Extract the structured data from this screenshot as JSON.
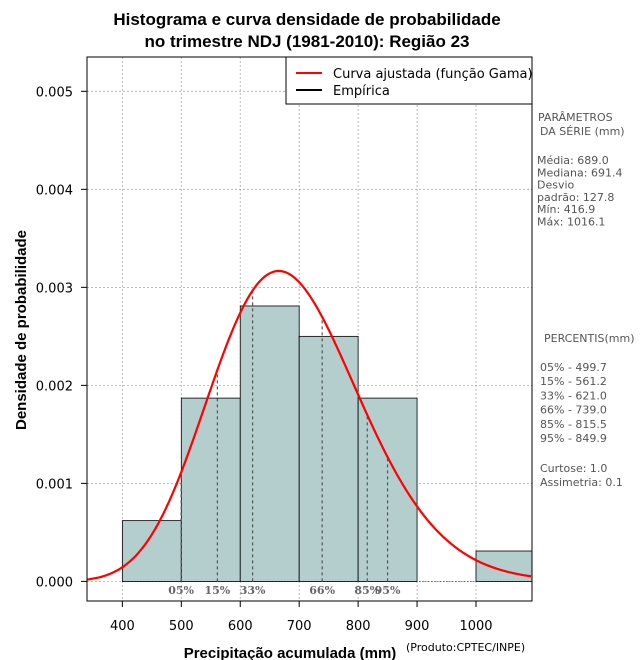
{
  "chart_data": {
    "type": "bar",
    "title_line1": "Histograma e curva densidade de probabilidade",
    "title_line2": "no trimestre NDJ (1981-2010): Região 23",
    "xlabel": "Precipitação acumulada (mm)",
    "ylabel": "Densidade de probabilidade",
    "credit": "(Produto:CPTEC/INPE)",
    "xlim": [
      340,
      1095
    ],
    "ylim": [
      -0.0002,
      0.00535
    ],
    "x_ticks": [
      400,
      500,
      600,
      700,
      800,
      900,
      1000
    ],
    "y_ticks": [
      0.0,
      0.001,
      0.002,
      0.003,
      0.004,
      0.005
    ],
    "y_tick_labels": [
      "0.000",
      "0.001",
      "0.002",
      "0.003",
      "0.004",
      "0.005"
    ],
    "grid": true,
    "bins": [
      {
        "from": 400,
        "to": 500,
        "density": 0.00062
      },
      {
        "from": 500,
        "to": 600,
        "density": 0.00187
      },
      {
        "from": 600,
        "to": 700,
        "density": 0.00281
      },
      {
        "from": 700,
        "to": 800,
        "density": 0.0025
      },
      {
        "from": 800,
        "to": 900,
        "density": 0.00187
      },
      {
        "from": 900,
        "to": 1000,
        "density": 0.0
      },
      {
        "from": 1000,
        "to": 1100,
        "density": 0.00031
      }
    ],
    "fitted_curve": {
      "name": "Curva ajustada (função Gama)",
      "distribution": "gamma",
      "mean": 689.0,
      "sd": 127.8,
      "color": "#ff0000"
    },
    "empirical": {
      "name": "Empírica",
      "color": "#000000"
    },
    "legend": {
      "position": "top-right"
    },
    "percentile_markers": [
      {
        "label": "05%",
        "value": 499.7
      },
      {
        "label": "15%",
        "value": 561.2
      },
      {
        "label": "33%",
        "value": 621.0
      },
      {
        "label": "66%",
        "value": 739.0
      },
      {
        "label": "85%",
        "value": 815.5
      },
      {
        "label": "95%",
        "value": 849.9
      }
    ]
  },
  "colors": {
    "bar_fill": "#b4cdcd",
    "bar_stroke": "#000000",
    "grid": "#a8a8a8",
    "marker": "#555555"
  },
  "side_panel": {
    "params_title_line1": "PARÂMETROS",
    "params_title_line2": "DA SÉRIE (mm)",
    "params": [
      "Média:  689.0",
      "Mediana:  691.4",
      "Desvio",
      "padrão:  127.8",
      "Mín:  416.9",
      "Máx:  1016.1"
    ],
    "percentis_title": "PERCENTIS(mm)",
    "percentis": [
      "05% -  499.7",
      "15% -  561.2",
      "33% -  621.0",
      "66% -  739.0",
      "85% -  815.5",
      "95% -  849.9"
    ],
    "stats": [
      "Curtose:  1.0",
      "Assimetria:  0.1"
    ]
  }
}
